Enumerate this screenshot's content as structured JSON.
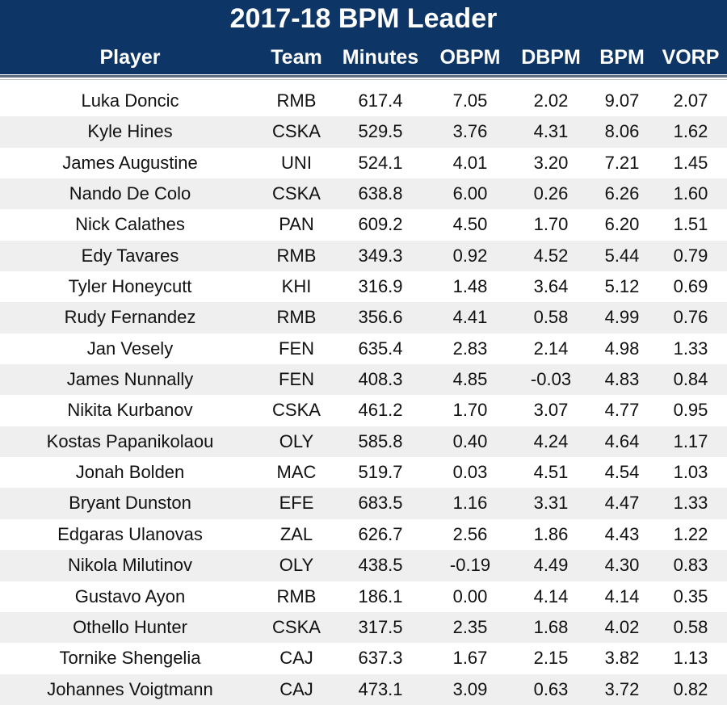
{
  "chart_data": {
    "type": "table",
    "title": "2017-18 BPM Leader",
    "columns": [
      "Player",
      "Team",
      "Minutes",
      "OBPM",
      "DBPM",
      "BPM",
      "VORP"
    ],
    "rows": [
      [
        "Luka Doncic",
        "RMB",
        "617.4",
        "7.05",
        "2.02",
        "9.07",
        "2.07"
      ],
      [
        "Kyle Hines",
        "CSKA",
        "529.5",
        "3.76",
        "4.31",
        "8.06",
        "1.62"
      ],
      [
        "James Augustine",
        "UNI",
        "524.1",
        "4.01",
        "3.20",
        "7.21",
        "1.45"
      ],
      [
        "Nando De Colo",
        "CSKA",
        "638.8",
        "6.00",
        "0.26",
        "6.26",
        "1.60"
      ],
      [
        "Nick Calathes",
        "PAN",
        "609.2",
        "4.50",
        "1.70",
        "6.20",
        "1.51"
      ],
      [
        "Edy Tavares",
        "RMB",
        "349.3",
        "0.92",
        "4.52",
        "5.44",
        "0.79"
      ],
      [
        "Tyler Honeycutt",
        "KHI",
        "316.9",
        "1.48",
        "3.64",
        "5.12",
        "0.69"
      ],
      [
        "Rudy Fernandez",
        "RMB",
        "356.6",
        "4.41",
        "0.58",
        "4.99",
        "0.76"
      ],
      [
        "Jan Vesely",
        "FEN",
        "635.4",
        "2.83",
        "2.14",
        "4.98",
        "1.33"
      ],
      [
        "James Nunnally",
        "FEN",
        "408.3",
        "4.85",
        "-0.03",
        "4.83",
        "0.84"
      ],
      [
        "Nikita Kurbanov",
        "CSKA",
        "461.2",
        "1.70",
        "3.07",
        "4.77",
        "0.95"
      ],
      [
        "Kostas Papanikolaou",
        "OLY",
        "585.8",
        "0.40",
        "4.24",
        "4.64",
        "1.17"
      ],
      [
        "Jonah Bolden",
        "MAC",
        "519.7",
        "0.03",
        "4.51",
        "4.54",
        "1.03"
      ],
      [
        "Bryant Dunston",
        "EFE",
        "683.5",
        "1.16",
        "3.31",
        "4.47",
        "1.33"
      ],
      [
        "Edgaras Ulanovas",
        "ZAL",
        "626.7",
        "2.56",
        "1.86",
        "4.43",
        "1.22"
      ],
      [
        "Nikola Milutinov",
        "OLY",
        "438.5",
        "-0.19",
        "4.49",
        "4.30",
        "0.83"
      ],
      [
        "Gustavo Ayon",
        "RMB",
        "186.1",
        "0.00",
        "4.14",
        "4.14",
        "0.35"
      ],
      [
        "Othello Hunter",
        "CSKA",
        "317.5",
        "2.35",
        "1.68",
        "4.02",
        "0.58"
      ],
      [
        "Tornike Shengelia",
        "CAJ",
        "637.3",
        "1.67",
        "2.15",
        "3.82",
        "1.13"
      ],
      [
        "Johannes Voigtmann",
        "CAJ",
        "473.1",
        "3.09",
        "0.63",
        "3.72",
        "0.82"
      ]
    ]
  },
  "colors": {
    "header_bg": "#0d3566",
    "header_text": "#ffffff",
    "row_alt_bg": "#efefef",
    "row_bg": "#ffffff",
    "text": "#111111"
  }
}
